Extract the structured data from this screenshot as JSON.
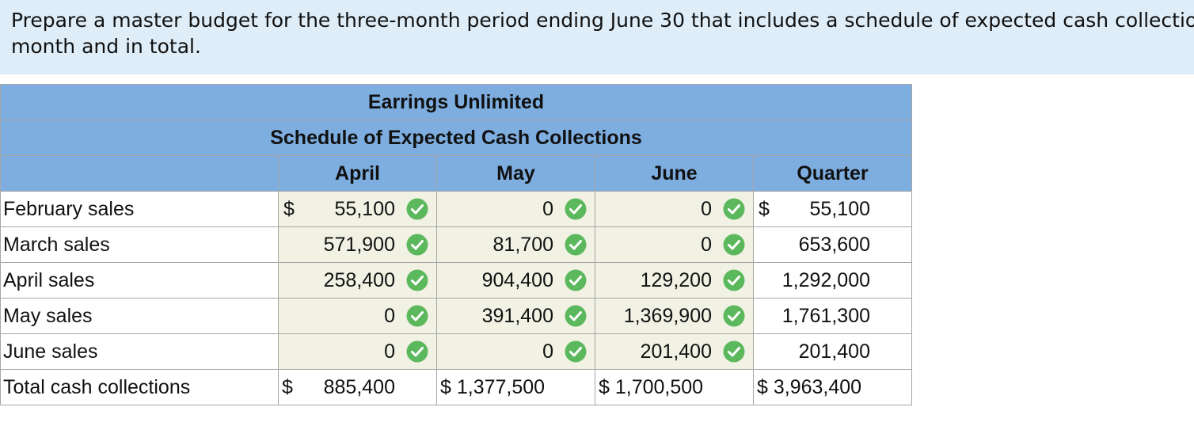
{
  "instruction": {
    "line1": "Prepare a master budget for the three-month period ending June 30 that includes a schedule of expected cash collections, by",
    "line2": "month and in total."
  },
  "table": {
    "company": "Earrings Unlimited",
    "title": "Schedule of Expected Cash Collections",
    "columns": [
      "April",
      "May",
      "June",
      "Quarter"
    ],
    "rows": [
      {
        "label": "February sales",
        "april": {
          "dollar": "$",
          "value": "55,100",
          "check": true
        },
        "may": {
          "dollar": "",
          "value": "0",
          "check": true
        },
        "june": {
          "dollar": "",
          "value": "0",
          "check": true
        },
        "quarter": {
          "dollar": "$",
          "value": "55,100"
        }
      },
      {
        "label": "March sales",
        "april": {
          "dollar": "",
          "value": "571,900",
          "check": true
        },
        "may": {
          "dollar": "",
          "value": "81,700",
          "check": true
        },
        "june": {
          "dollar": "",
          "value": "0",
          "check": true
        },
        "quarter": {
          "dollar": "",
          "value": "653,600"
        }
      },
      {
        "label": "April sales",
        "april": {
          "dollar": "",
          "value": "258,400",
          "check": true
        },
        "may": {
          "dollar": "",
          "value": "904,400",
          "check": true
        },
        "june": {
          "dollar": "",
          "value": "129,200",
          "check": true
        },
        "quarter": {
          "dollar": "",
          "value": "1,292,000"
        }
      },
      {
        "label": "May sales",
        "april": {
          "dollar": "",
          "value": "0",
          "check": true
        },
        "may": {
          "dollar": "",
          "value": "391,400",
          "check": true
        },
        "june": {
          "dollar": "",
          "value": "1,369,900",
          "check": true
        },
        "quarter": {
          "dollar": "",
          "value": "1,761,300"
        }
      },
      {
        "label": "June sales",
        "april": {
          "dollar": "",
          "value": "0",
          "check": true
        },
        "may": {
          "dollar": "",
          "value": "0",
          "check": true
        },
        "june": {
          "dollar": "",
          "value": "201,400",
          "check": true
        },
        "quarter": {
          "dollar": "",
          "value": "201,400"
        }
      }
    ],
    "total": {
      "label": "Total cash collections",
      "april": {
        "dollar": "$",
        "value": "885,400"
      },
      "may": {
        "text": "$ 1,377,500"
      },
      "june": {
        "text": "$ 1,700,500"
      },
      "quarter": {
        "text": "$ 3,963,400"
      }
    }
  },
  "colors": {
    "header_bg": "#7eaee0",
    "instruction_bg": "#deedf8",
    "input_bg": "#f1f1e4",
    "check_green": "#5cb85c"
  },
  "icons": {
    "check": "check-circle-icon"
  }
}
